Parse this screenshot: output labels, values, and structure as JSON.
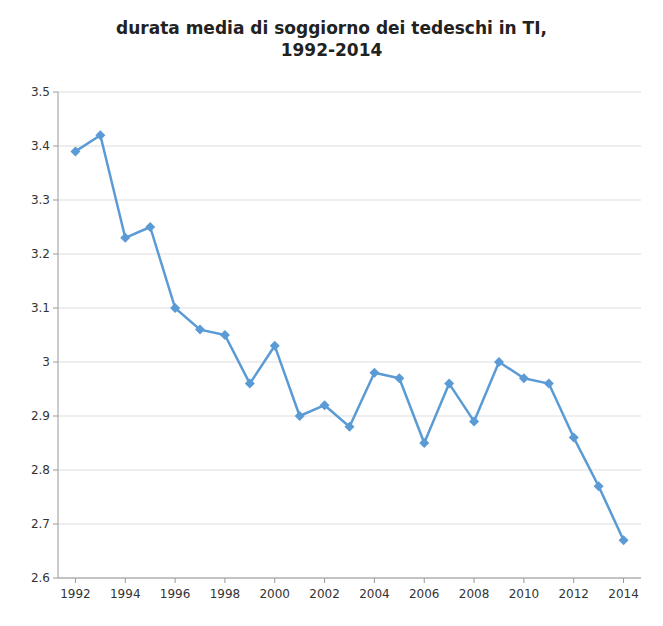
{
  "chart_data": {
    "type": "line",
    "title": "durata media di soggiorno dei tedeschi in TI,\n1992-2014",
    "x": [
      1992,
      1993,
      1994,
      1995,
      1996,
      1997,
      1998,
      1999,
      2000,
      2001,
      2002,
      2003,
      2004,
      2005,
      2006,
      2007,
      2008,
      2009,
      2010,
      2011,
      2012,
      2013,
      2014
    ],
    "values": [
      3.39,
      3.42,
      3.23,
      3.25,
      3.1,
      3.06,
      3.05,
      2.96,
      3.03,
      2.9,
      2.92,
      2.88,
      2.98,
      2.97,
      2.85,
      2.96,
      2.89,
      3.0,
      2.97,
      2.96,
      2.86,
      2.77,
      2.67
    ],
    "xlim": [
      1991.3,
      2014.7
    ],
    "xticks": [
      1992,
      1994,
      1996,
      1998,
      2000,
      2002,
      2004,
      2006,
      2008,
      2010,
      2012,
      2014
    ],
    "ylim": [
      2.6,
      3.5
    ],
    "yticks": [
      2.6,
      2.7,
      2.8,
      2.9,
      3,
      3.1,
      3.2,
      3.3,
      3.4,
      3.5
    ],
    "color": "#5B9BD5",
    "marker": "diamond",
    "grid": true
  }
}
